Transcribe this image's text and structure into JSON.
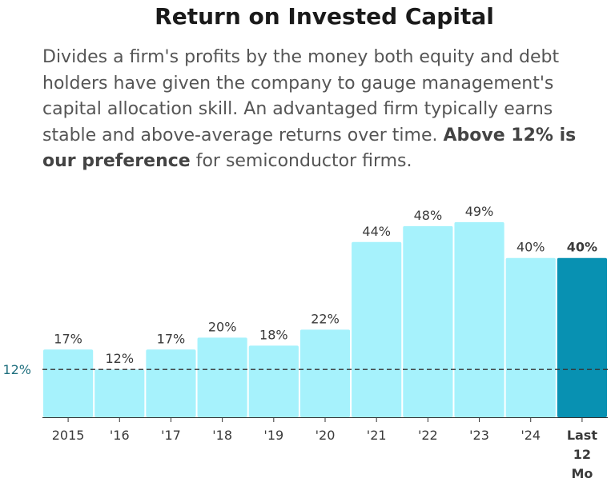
{
  "header": {
    "title": "Return on Invested Capital",
    "description_plain": "Divides a firm's profits by the money both equity and debt holders have given the company to gauge management's capital allocation skill. An advantaged firm typically earns stable and above-average returns over time. ",
    "description_bold": "Above 12% is our preference",
    "description_tail": " for semiconductor firms."
  },
  "colors": {
    "bar": "#a6f2fc",
    "highlight": "#0891b2",
    "reference_line": "#333333",
    "reference_label": "#1f6f7e"
  },
  "chart_data": {
    "type": "bar",
    "title": "Return on Invested Capital",
    "categories": [
      "2015",
      "'16",
      "'17",
      "'18",
      "'19",
      "'20",
      "'21",
      "'22",
      "'23",
      "'24",
      "Last 12 Mo"
    ],
    "values": [
      17,
      12,
      17,
      20,
      18,
      22,
      44,
      48,
      49,
      40,
      40
    ],
    "value_labels": [
      "17%",
      "12%",
      "17%",
      "20%",
      "18%",
      "22%",
      "44%",
      "48%",
      "49%",
      "40%",
      "40%"
    ],
    "highlight_index": 10,
    "reference_line": {
      "value": 12,
      "label": "12%"
    },
    "ylim": [
      0,
      55
    ],
    "grid": false,
    "legend": "none",
    "xlabel": "",
    "ylabel": ""
  }
}
